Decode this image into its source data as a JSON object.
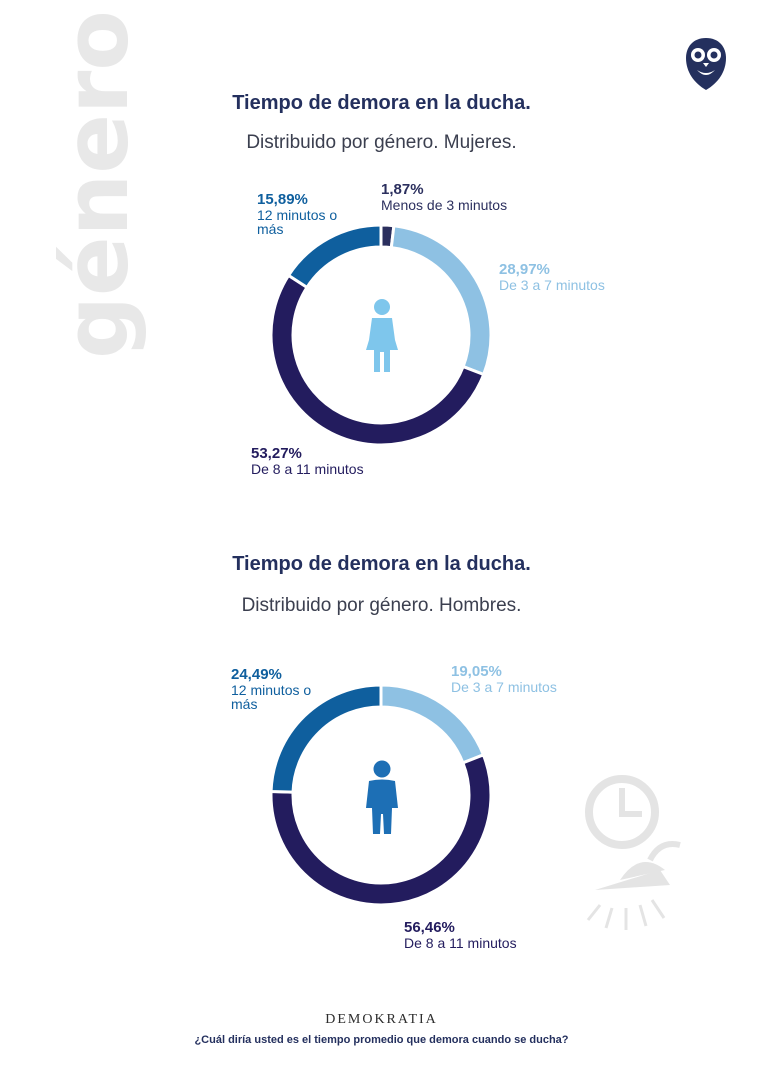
{
  "side_word": "género",
  "brand": "DEMOKRATIA",
  "footer_question": "¿Cuál diría usted es el tiempo promedio que demora cuando se ducha?",
  "icons": {
    "logo": "owl-logo-icon",
    "woman": "woman-icon",
    "man": "man-icon",
    "decoration": "clock-shower-icon"
  },
  "colors": {
    "dark": "#231c5e",
    "mid": "#0f5f9e",
    "light": "#8ec1e3",
    "tiny": "#2b2f5e",
    "woman_icon": "#7ec6ec",
    "man_icon": "#1d6fb5"
  },
  "chart_data": [
    {
      "type": "pie",
      "title": "Tiempo de demora en la ducha.",
      "subtitle": "Distribuido por género. Mujeres.",
      "slices": [
        {
          "pct_label": "1,87%",
          "category": "Menos de 3 minutos",
          "value": 1.87,
          "color": "#2b2f5e"
        },
        {
          "pct_label": "28,97%",
          "category": "De 3 a 7 minutos",
          "value": 28.97,
          "color": "#8ec1e3"
        },
        {
          "pct_label": "53,27%",
          "category": "De 8 a 11 minutos",
          "value": 53.27,
          "color": "#231c5e"
        },
        {
          "pct_label": "15,89%",
          "category": "12 minutos o más",
          "value": 15.89,
          "color": "#0f5f9e"
        }
      ]
    },
    {
      "type": "pie",
      "title": "Tiempo de demora en la ducha.",
      "subtitle": "Distribuido por género. Hombres.",
      "slices": [
        {
          "pct_label": "19,05%",
          "category": "De 3 a 7 minutos",
          "value": 19.05,
          "color": "#8ec1e3"
        },
        {
          "pct_label": "56,46%",
          "category": "De 8 a 11 minutos",
          "value": 56.46,
          "color": "#231c5e"
        },
        {
          "pct_label": "24,49%",
          "category": "12 minutos o más",
          "value": 24.49,
          "color": "#0f5f9e"
        }
      ]
    }
  ]
}
